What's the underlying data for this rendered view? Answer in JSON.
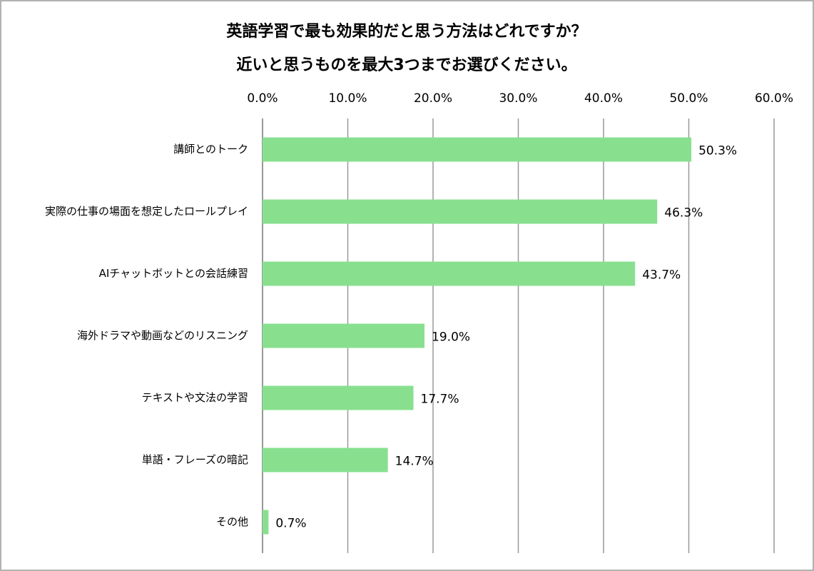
{
  "chart_data": {
    "type": "bar",
    "orientation": "horizontal",
    "title": "英語学習で最も効果的だと思う方法はどれですか？",
    "subtitle": "近いと思うものを最大3つまでお選びください。",
    "categories": [
      "講師とのトーク",
      "実際の仕事の場面を想定したロールプレイ",
      "AIチャットボットとの会話練習",
      "海外ドラマや動画などのリスニング",
      "テキストや文法の学習",
      "単語・フレーズの暗記",
      "その他"
    ],
    "values": [
      50.3,
      46.3,
      43.7,
      19.0,
      17.7,
      14.7,
      0.7
    ],
    "value_labels": [
      "50.3%",
      "46.3%",
      "43.7%",
      "19.0%",
      "17.7%",
      "14.7%",
      "0.7%"
    ],
    "color": "#88e08f",
    "xlim": [
      0,
      60
    ],
    "xticks": [
      {
        "value": 0,
        "label": "0.0%"
      },
      {
        "value": 10,
        "label": "10.0%"
      },
      {
        "value": 20,
        "label": "20.0%"
      },
      {
        "value": 30,
        "label": "30.0%"
      },
      {
        "value": 40,
        "label": "40.0%"
      },
      {
        "value": 50,
        "label": "50.0%"
      },
      {
        "value": 60,
        "label": "60.0%"
      }
    ],
    "grid": true
  }
}
